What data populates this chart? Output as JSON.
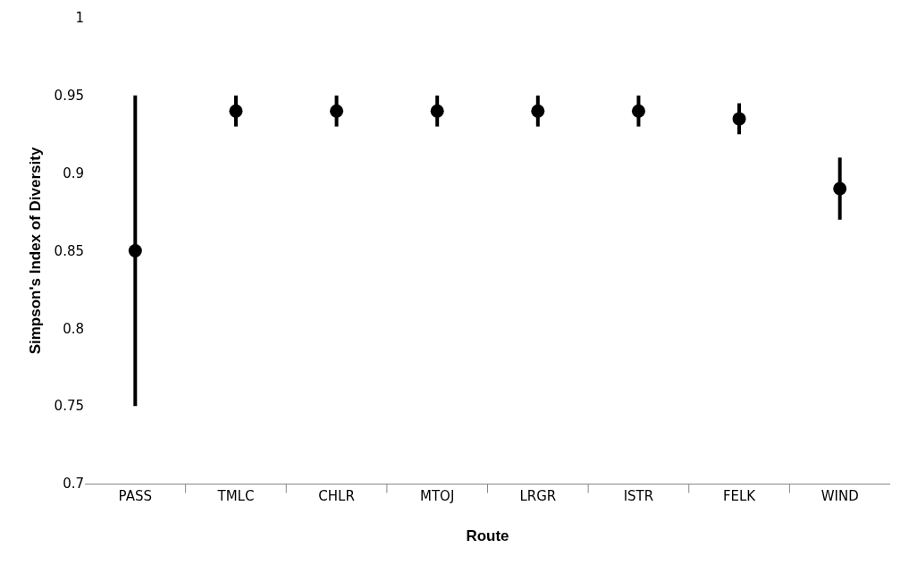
{
  "chart_data": {
    "type": "scatter",
    "xlabel": "Route",
    "ylabel": "Simpson's Index of Diversity",
    "categories": [
      "PASS",
      "TMLC",
      "CHLR",
      "MTOJ",
      "LRGR",
      "ISTR",
      "FELK",
      "WIND"
    ],
    "values": [
      0.85,
      0.94,
      0.94,
      0.94,
      0.94,
      0.94,
      0.935,
      0.89
    ],
    "errors": [
      0.1,
      0.01,
      0.01,
      0.01,
      0.01,
      0.01,
      0.01,
      0.02
    ],
    "color": "#000000",
    "marker": "circle",
    "grid": false,
    "ylim": [
      0.7,
      1
    ],
    "yticks": [
      0.7,
      0.75,
      0.8,
      0.85,
      0.9,
      0.95,
      1
    ]
  }
}
